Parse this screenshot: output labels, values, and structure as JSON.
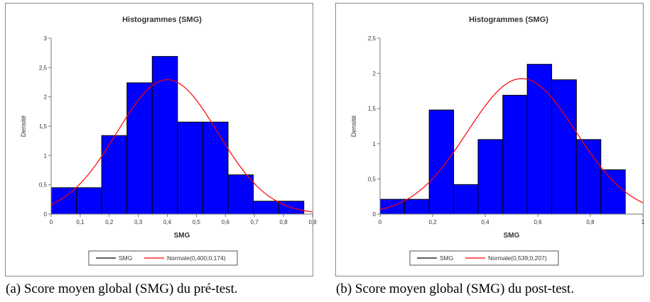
{
  "chart_data": [
    {
      "type": "histogram",
      "title": "Histogrammes (SMG)",
      "xlabel": "SMG",
      "ylabel": "Densité",
      "xlim": [
        0,
        0.9
      ],
      "ylim": [
        0,
        3
      ],
      "xticks": [
        "0",
        "0,1",
        "0,2",
        "0,3",
        "0,4",
        "0,5",
        "0,6",
        "0,7",
        "0,8",
        "0,9"
      ],
      "yticks": [
        "0",
        "0,5",
        "1",
        "1,5",
        "2",
        "2,5",
        "3"
      ],
      "bins": [
        {
          "x0": 0.0,
          "x1": 0.087,
          "density": 0.45
        },
        {
          "x0": 0.087,
          "x1": 0.174,
          "density": 0.45
        },
        {
          "x0": 0.174,
          "x1": 0.261,
          "density": 1.34
        },
        {
          "x0": 0.261,
          "x1": 0.348,
          "density": 2.24
        },
        {
          "x0": 0.348,
          "x1": 0.435,
          "density": 2.69
        },
        {
          "x0": 0.435,
          "x1": 0.522,
          "density": 1.57
        },
        {
          "x0": 0.522,
          "x1": 0.609,
          "density": 1.57
        },
        {
          "x0": 0.609,
          "x1": 0.696,
          "density": 0.67
        },
        {
          "x0": 0.696,
          "x1": 0.783,
          "density": 0.22
        },
        {
          "x0": 0.783,
          "x1": 0.87,
          "density": 0.22
        }
      ],
      "normal": {
        "mean": 0.4,
        "sd": 0.174
      },
      "legend": [
        {
          "label": "SMG",
          "color": "#000000"
        },
        {
          "label": "Normale(0,400;0,174)",
          "color": "#ff0000"
        }
      ],
      "legend_position": "bottom",
      "bar_color": "#0000ff",
      "curve_color": "#ff0000"
    },
    {
      "type": "histogram",
      "title": "Histogrammes (SMG)",
      "xlabel": "SMG",
      "ylabel": "Densité",
      "xlim": [
        0,
        1
      ],
      "ylim": [
        0,
        2.5
      ],
      "xticks": [
        "0",
        "0,2",
        "0,4",
        "0,6",
        "0,8",
        "1"
      ],
      "yticks": [
        "0",
        "0,5",
        "1",
        "1,5",
        "2",
        "2,5"
      ],
      "bins": [
        {
          "x0": 0.0,
          "x1": 0.093,
          "density": 0.21
        },
        {
          "x0": 0.093,
          "x1": 0.187,
          "density": 0.21
        },
        {
          "x0": 0.187,
          "x1": 0.28,
          "density": 1.48
        },
        {
          "x0": 0.28,
          "x1": 0.373,
          "density": 0.42
        },
        {
          "x0": 0.373,
          "x1": 0.467,
          "density": 1.06
        },
        {
          "x0": 0.467,
          "x1": 0.56,
          "density": 1.69
        },
        {
          "x0": 0.56,
          "x1": 0.653,
          "density": 2.13
        },
        {
          "x0": 0.653,
          "x1": 0.747,
          "density": 1.91
        },
        {
          "x0": 0.747,
          "x1": 0.84,
          "density": 1.06
        },
        {
          "x0": 0.84,
          "x1": 0.933,
          "density": 0.63
        }
      ],
      "normal": {
        "mean": 0.539,
        "sd": 0.207
      },
      "legend": [
        {
          "label": "SMG",
          "color": "#000000"
        },
        {
          "label": "Normale(0,539;0,207)",
          "color": "#ff0000"
        }
      ],
      "legend_position": "bottom",
      "bar_color": "#0000ff",
      "curve_color": "#ff0000"
    }
  ],
  "captions": [
    "(a)  Score moyen global (SMG) du pré-test.",
    "(b) Score moyen global (SMG) du post-test."
  ]
}
